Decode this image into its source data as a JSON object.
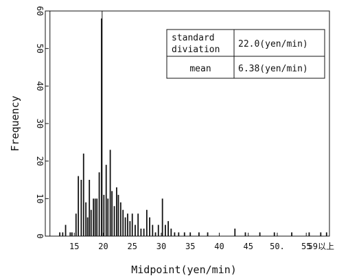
{
  "chart_data": {
    "type": "bar",
    "title": "",
    "xlabel": "Midpoint(yen/min)",
    "ylabel": "Frequency",
    "xlim": [
      10,
      59
    ],
    "ylim": [
      0,
      60
    ],
    "grid": false,
    "x_ticks": [
      {
        "value": 15,
        "label": "15"
      },
      {
        "value": 20,
        "label": "20"
      },
      {
        "value": 25,
        "label": "25"
      },
      {
        "value": 30,
        "label": "30"
      },
      {
        "value": 35,
        "label": "35"
      },
      {
        "value": 40,
        "label": "40"
      },
      {
        "value": 45,
        "label": "45"
      },
      {
        "value": 50,
        "label": "50."
      },
      {
        "value": 55,
        "label": "55"
      },
      {
        "value": 59,
        "label": "59以上"
      }
    ],
    "y_ticks": [
      {
        "value": 0,
        "label": "0"
      },
      {
        "value": 10,
        "label": "10"
      },
      {
        "value": 20,
        "label": "20"
      },
      {
        "value": 30,
        "label": "30"
      },
      {
        "value": 40,
        "label": "40"
      },
      {
        "value": 50,
        "label": "50"
      },
      {
        "value": 60,
        "label": "60"
      }
    ],
    "bars": [
      {
        "x": 12.5,
        "y": 1
      },
      {
        "x": 13.0,
        "y": 1
      },
      {
        "x": 13.5,
        "y": 3
      },
      {
        "x": 14.3,
        "y": 1
      },
      {
        "x": 14.6,
        "y": 1
      },
      {
        "x": 15.3,
        "y": 6
      },
      {
        "x": 15.7,
        "y": 16
      },
      {
        "x": 16.2,
        "y": 15
      },
      {
        "x": 16.6,
        "y": 22
      },
      {
        "x": 17.0,
        "y": 9
      },
      {
        "x": 17.3,
        "y": 5
      },
      {
        "x": 17.6,
        "y": 15
      },
      {
        "x": 17.9,
        "y": 7
      },
      {
        "x": 18.3,
        "y": 10
      },
      {
        "x": 18.6,
        "y": 10
      },
      {
        "x": 18.9,
        "y": 10
      },
      {
        "x": 19.3,
        "y": 17
      },
      {
        "x": 19.7,
        "y": 58
      },
      {
        "x": 20.1,
        "y": 11
      },
      {
        "x": 20.5,
        "y": 19
      },
      {
        "x": 20.8,
        "y": 10
      },
      {
        "x": 21.2,
        "y": 23
      },
      {
        "x": 21.5,
        "y": 12
      },
      {
        "x": 21.9,
        "y": 8
      },
      {
        "x": 22.3,
        "y": 13
      },
      {
        "x": 22.6,
        "y": 11
      },
      {
        "x": 23.0,
        "y": 9
      },
      {
        "x": 23.4,
        "y": 7
      },
      {
        "x": 23.8,
        "y": 5
      },
      {
        "x": 24.2,
        "y": 6
      },
      {
        "x": 24.6,
        "y": 4
      },
      {
        "x": 25.0,
        "y": 6
      },
      {
        "x": 25.5,
        "y": 3
      },
      {
        "x": 26.0,
        "y": 6
      },
      {
        "x": 26.5,
        "y": 2
      },
      {
        "x": 27.0,
        "y": 2
      },
      {
        "x": 27.5,
        "y": 7
      },
      {
        "x": 28.0,
        "y": 5
      },
      {
        "x": 28.5,
        "y": 3
      },
      {
        "x": 29.0,
        "y": 1
      },
      {
        "x": 29.5,
        "y": 3
      },
      {
        "x": 30.2,
        "y": 10
      },
      {
        "x": 30.7,
        "y": 3
      },
      {
        "x": 31.2,
        "y": 4
      },
      {
        "x": 31.7,
        "y": 2
      },
      {
        "x": 32.3,
        "y": 1
      },
      {
        "x": 33.0,
        "y": 1
      },
      {
        "x": 34.0,
        "y": 1
      },
      {
        "x": 35.0,
        "y": 1
      },
      {
        "x": 36.5,
        "y": 1
      },
      {
        "x": 38.0,
        "y": 1
      },
      {
        "x": 42.7,
        "y": 2
      },
      {
        "x": 44.5,
        "y": 1
      },
      {
        "x": 47.0,
        "y": 1
      },
      {
        "x": 49.5,
        "y": 1
      },
      {
        "x": 52.5,
        "y": 1
      },
      {
        "x": 55.5,
        "y": 1
      },
      {
        "x": 57.5,
        "y": 1
      },
      {
        "x": 58.5,
        "y": 1
      }
    ],
    "outline_bin": {
      "x0": 10.8,
      "x1": 19.8,
      "y": 60
    },
    "stats_table": [
      {
        "label": [
          "standard",
          "diviation"
        ],
        "value": "22.0(yen/min)"
      },
      {
        "label": [
          "mean"
        ],
        "value": "6.38(yen/min)"
      }
    ]
  }
}
